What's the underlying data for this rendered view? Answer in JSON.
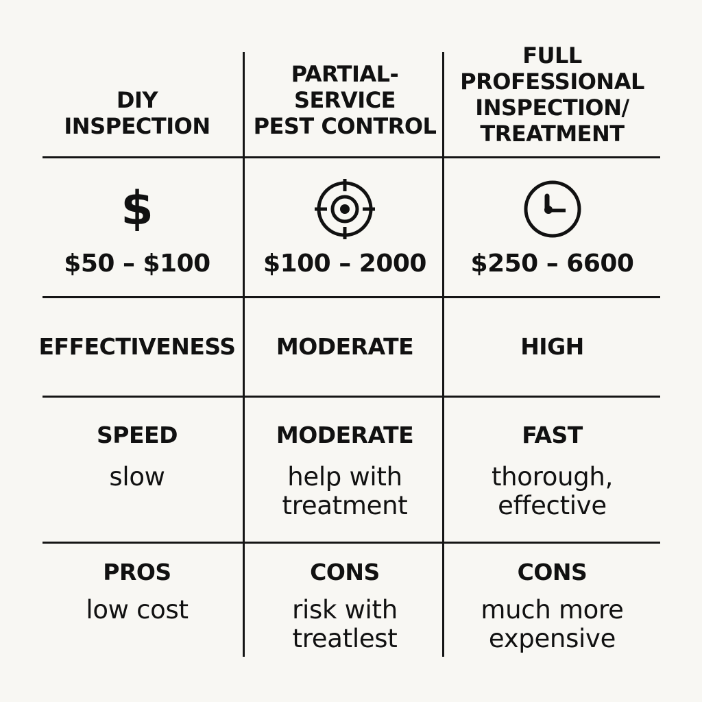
{
  "headers": {
    "col1": [
      "DIY",
      "INSPECTION"
    ],
    "col2": [
      "PARTIAL-",
      "SERVICE",
      "PEST CONTROL"
    ],
    "col3": [
      "FULL",
      "PROFESSIONAL",
      "INSPECTION/",
      "TREATMENT"
    ]
  },
  "cost": {
    "col1": {
      "icon": "dollar-icon",
      "glyph": "$",
      "price": "$50 – $100"
    },
    "col2": {
      "icon": "target-icon",
      "price": "$100 – 2000"
    },
    "col3": {
      "icon": "clock-icon",
      "price": "$250 – 6600"
    }
  },
  "effectiveness": {
    "label": "EFFECTIVENESS",
    "col2": "MODERATE",
    "col3": "HIGH"
  },
  "speed": {
    "col1_label": "SPEED",
    "col1_text": "slow",
    "col2_label": "MODERATE",
    "col2_text": [
      "help with",
      "treatment"
    ],
    "col3_label": "FAST",
    "col3_text": [
      "thorough,",
      "effective"
    ]
  },
  "pros_cons": {
    "col1_label": "PROS",
    "col1_text": "low cost",
    "col2_label": "CONS",
    "col2_text": [
      "risk with",
      "treatlest"
    ],
    "col3_label": "CONS",
    "col3_text": [
      "much more",
      "expensive"
    ]
  },
  "colors": {
    "background": "#f8f7f3",
    "ink": "#111111"
  }
}
